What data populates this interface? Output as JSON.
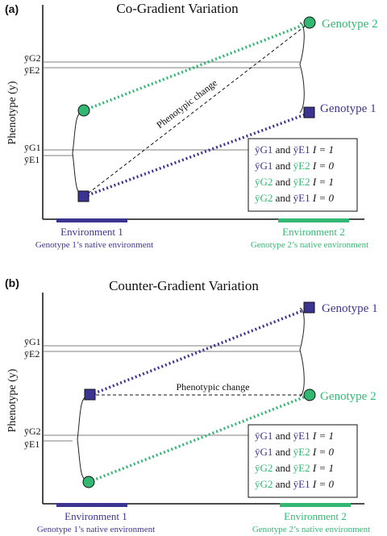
{
  "colors": {
    "genotype1": "#3b3591",
    "genotype2": "#33b873",
    "line": "#111111"
  },
  "panels": [
    {
      "letter": "(a)",
      "title": "Co-Gradient Variation",
      "y_axis_label": "Phenotype (y)",
      "genotype1_label": "Genotype 1",
      "genotype2_label": "Genotype 2",
      "phenotypic_change_label": "Phenotypic change",
      "mean_labels": {
        "top1": "ȳG2",
        "top2": "ȳE2",
        "bot1": "ȳG1",
        "bot2": "ȳE1"
      },
      "env1": {
        "label": "Environment 1",
        "sub": "Genotype 1’s native environment"
      },
      "env2": {
        "label": "Environment 2",
        "sub": "Genotype 2’s native environment"
      },
      "legend": [
        {
          "a": "ȳG1",
          "and": "and",
          "b": "ȳE1",
          "i": "I = 1",
          "a_color": "genotype1",
          "b_color": "genotype1"
        },
        {
          "a": "ȳG1",
          "and": "and",
          "b": "ȳE2",
          "i": "I = 0",
          "a_color": "genotype1",
          "b_color": "genotype2"
        },
        {
          "a": "ȳG2",
          "and": "and",
          "b": "ȳE2",
          "i": "I = 1",
          "a_color": "genotype2",
          "b_color": "genotype2"
        },
        {
          "a": "ȳG2",
          "and": "and",
          "b": "ȳE1",
          "i": "I = 0",
          "a_color": "genotype2",
          "b_color": "genotype1"
        }
      ]
    },
    {
      "letter": "(b)",
      "title": "Counter-Gradient Variation",
      "y_axis_label": "Phenotype (y)",
      "genotype1_label": "Genotype 1",
      "genotype2_label": "Genotype 2",
      "phenotypic_change_label": "Phenotypic change",
      "mean_labels": {
        "top1": "ȳG1",
        "top2": "ȳE2",
        "bot1": "ȳG2",
        "bot2": "ȳE1"
      },
      "env1": {
        "label": "Environment 1",
        "sub": "Genotype 1’s native environment"
      },
      "env2": {
        "label": "Environment 2",
        "sub": "Genotype 2’s native environment"
      },
      "legend": [
        {
          "a": "ȳG1",
          "and": "and",
          "b": "ȳE1",
          "i": "I = 1",
          "a_color": "genotype1",
          "b_color": "genotype1"
        },
        {
          "a": "ȳG1",
          "and": "and",
          "b": "ȳE2",
          "i": "I = 0",
          "a_color": "genotype1",
          "b_color": "genotype2"
        },
        {
          "a": "ȳG2",
          "and": "and",
          "b": "ȳE2",
          "i": "I = 1",
          "a_color": "genotype2",
          "b_color": "genotype2"
        },
        {
          "a": "ȳG2",
          "and": "and",
          "b": "ȳE1",
          "i": "I = 0",
          "a_color": "genotype2",
          "b_color": "genotype1"
        }
      ]
    }
  ]
}
